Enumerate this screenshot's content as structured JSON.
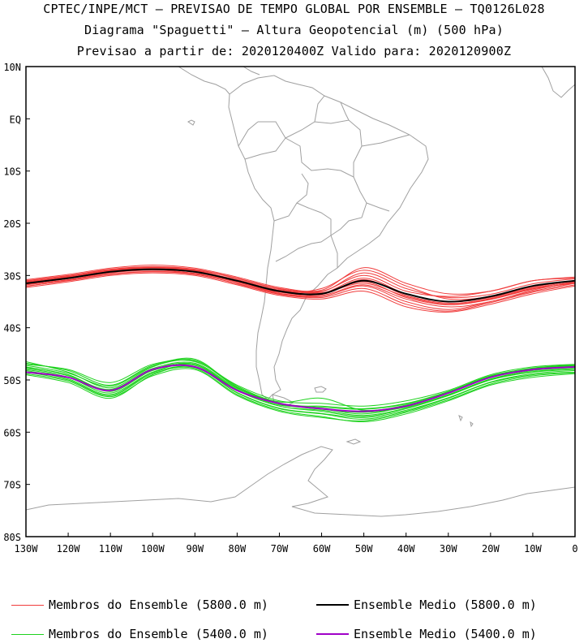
{
  "title": {
    "line1": "CPTEC/INPE/MCT – PREVISAO DE TEMPO GLOBAL POR ENSEMBLE – TQ0126L028",
    "line2": "Diagrama \"Spaguetti\" – Altura Geopotencial (m) (500 hPa)",
    "line3": "Previsao a partir de: 2020120400Z  Valido para: 2020120900Z"
  },
  "colors": {
    "member_5800": "#f03c3c",
    "mean_5800": "#000000",
    "member_5400": "#1ed21e",
    "mean_5400": "#a000c8",
    "coastline": "#a0a0a0"
  },
  "legend": [
    {
      "label": "Membros do Ensemble (5800.0 m)",
      "color": "#f03c3c",
      "thick": false
    },
    {
      "label": "Ensemble Medio (5800.0 m)",
      "color": "#000000",
      "thick": true
    },
    {
      "label": "Membros do Ensemble (5400.0 m)",
      "color": "#1ed21e",
      "thick": false
    },
    {
      "label": "Ensemble Medio (5400.0 m)",
      "color": "#a000c8",
      "thick": true
    }
  ],
  "chart_data": {
    "type": "line",
    "projection": "lat-lon map (South America)",
    "xlim": [
      -130,
      0
    ],
    "ylim": [
      -80,
      10
    ],
    "x_ticks": [
      {
        "v": -130,
        "label": "130W"
      },
      {
        "v": -120,
        "label": "120W"
      },
      {
        "v": -110,
        "label": "110W"
      },
      {
        "v": -100,
        "label": "100W"
      },
      {
        "v": -90,
        "label": "90W"
      },
      {
        "v": -80,
        "label": "80W"
      },
      {
        "v": -70,
        "label": "70W"
      },
      {
        "v": -60,
        "label": "60W"
      },
      {
        "v": -50,
        "label": "50W"
      },
      {
        "v": -40,
        "label": "40W"
      },
      {
        "v": -30,
        "label": "30W"
      },
      {
        "v": -20,
        "label": "20W"
      },
      {
        "v": -10,
        "label": "10W"
      },
      {
        "v": 0,
        "label": "0"
      }
    ],
    "y_ticks": [
      {
        "v": 10,
        "label": "10N"
      },
      {
        "v": 0,
        "label": "EQ"
      },
      {
        "v": -10,
        "label": "10S"
      },
      {
        "v": -20,
        "label": "20S"
      },
      {
        "v": -30,
        "label": "30S"
      },
      {
        "v": -40,
        "label": "40S"
      },
      {
        "v": -50,
        "label": "50S"
      },
      {
        "v": -60,
        "label": "60S"
      },
      {
        "v": -70,
        "label": "70S"
      },
      {
        "v": -80,
        "label": "80S"
      }
    ],
    "lon": [
      -130,
      -120,
      -110,
      -100,
      -90,
      -80,
      -70,
      -60,
      -50,
      -40,
      -30,
      -20,
      -10,
      0
    ],
    "series": [
      {
        "name": "Ensemble Medio (5800.0 m)",
        "group": "5800",
        "role": "mean",
        "lat": [
          -31.5,
          -30.5,
          -29.3,
          -28.8,
          -29.3,
          -31.0,
          -33.0,
          -33.5,
          -31.0,
          -33.5,
          -35.0,
          -34.0,
          -32.0,
          -31.0
        ]
      },
      {
        "name": "Ensemble Medio (5400.0 m)",
        "group": "5400",
        "role": "mean",
        "lat": [
          -48.5,
          -49.5,
          -52.0,
          -48.0,
          -47.5,
          -52.0,
          -54.5,
          -55.5,
          -56.0,
          -55.0,
          -52.5,
          -49.5,
          -48.0,
          -47.5
        ]
      }
    ],
    "members_5800": [
      [
        -31.0,
        -30.0,
        -28.8,
        -28.3,
        -28.8,
        -30.5,
        -32.5,
        -33.0,
        -30.0,
        -33.0,
        -34.0,
        -33.0,
        -31.0,
        -30.5
      ],
      [
        -32.0,
        -31.0,
        -29.8,
        -29.3,
        -29.8,
        -31.5,
        -33.5,
        -34.0,
        -32.0,
        -35.0,
        -36.5,
        -35.0,
        -33.0,
        -31.5
      ],
      [
        -31.5,
        -30.2,
        -29.0,
        -28.5,
        -29.0,
        -31.0,
        -33.2,
        -32.5,
        -29.0,
        -32.0,
        -34.5,
        -34.0,
        -32.0,
        -31.0
      ],
      [
        -32.3,
        -31.2,
        -30.0,
        -29.5,
        -30.0,
        -31.8,
        -33.8,
        -34.5,
        -33.0,
        -36.0,
        -37.0,
        -35.5,
        -33.5,
        -32.0
      ],
      [
        -31.2,
        -30.3,
        -29.2,
        -28.5,
        -29.2,
        -30.8,
        -32.8,
        -33.3,
        -31.5,
        -34.0,
        -35.5,
        -34.5,
        -32.5,
        -31.5
      ],
      [
        -30.8,
        -29.8,
        -28.6,
        -28.0,
        -28.6,
        -30.3,
        -32.3,
        -32.8,
        -28.5,
        -31.5,
        -33.5,
        -33.0,
        -31.0,
        -30.3
      ],
      [
        -31.8,
        -30.8,
        -29.5,
        -29.0,
        -29.6,
        -31.3,
        -33.4,
        -33.8,
        -31.8,
        -34.5,
        -36.0,
        -35.0,
        -32.8,
        -31.2
      ],
      [
        -31.4,
        -30.4,
        -29.1,
        -28.7,
        -29.1,
        -30.9,
        -32.9,
        -33.4,
        -30.5,
        -33.5,
        -35.0,
        -34.2,
        -32.2,
        -31.0
      ],
      [
        -32.1,
        -30.9,
        -29.7,
        -29.2,
        -29.7,
        -31.6,
        -33.6,
        -34.2,
        -32.5,
        -35.5,
        -36.8,
        -35.2,
        -33.2,
        -31.8
      ],
      [
        -31.1,
        -30.1,
        -28.9,
        -28.4,
        -28.9,
        -30.6,
        -32.6,
        -33.1,
        -29.5,
        -32.5,
        -34.2,
        -33.6,
        -31.6,
        -30.6
      ],
      [
        -31.7,
        -30.6,
        -29.4,
        -28.9,
        -29.4,
        -31.2,
        -33.2,
        -33.6,
        -31.2,
        -34.2,
        -35.6,
        -34.6,
        -32.6,
        -31.4
      ],
      [
        -31.3,
        -30.5,
        -29.4,
        -28.9,
        -29.2,
        -30.9,
        -33.0,
        -33.6,
        -30.8,
        -33.8,
        -35.3,
        -34.4,
        -32.4,
        -31.2
      ]
    ],
    "members_5400": [
      [
        -47.0,
        -48.0,
        -50.5,
        -47.0,
        -46.5,
        -51.0,
        -54.0,
        -54.5,
        -55.0,
        -54.0,
        -52.0,
        -49.0,
        -47.5,
        -47.0
      ],
      [
        -48.0,
        -49.5,
        -52.5,
        -48.5,
        -47.0,
        -52.0,
        -55.0,
        -56.0,
        -57.0,
        -55.5,
        -53.0,
        -50.0,
        -48.5,
        -48.0
      ],
      [
        -46.5,
        -48.5,
        -51.5,
        -47.5,
        -46.0,
        -51.5,
        -54.5,
        -55.5,
        -56.5,
        -55.0,
        -52.5,
        -49.5,
        -48.0,
        -47.5
      ],
      [
        -49.0,
        -50.5,
        -53.5,
        -49.0,
        -47.5,
        -52.5,
        -55.5,
        -56.5,
        -57.5,
        -56.0,
        -53.5,
        -50.5,
        -49.0,
        -48.5
      ],
      [
        -47.5,
        -49.0,
        -52.0,
        -48.0,
        -47.0,
        -51.8,
        -54.8,
        -55.0,
        -55.5,
        -54.5,
        -52.2,
        -49.2,
        -47.8,
        -47.2
      ],
      [
        -48.5,
        -50.0,
        -53.0,
        -48.8,
        -47.8,
        -52.8,
        -55.8,
        -57.0,
        -58.0,
        -56.5,
        -54.0,
        -51.0,
        -49.5,
        -48.8
      ],
      [
        -47.8,
        -49.2,
        -51.8,
        -47.8,
        -46.8,
        -51.6,
        -54.6,
        -55.6,
        -56.2,
        -55.2,
        -52.8,
        -49.8,
        -48.2,
        -47.6
      ],
      [
        -46.8,
        -48.2,
        -51.0,
        -47.2,
        -46.2,
        -51.2,
        -54.2,
        -53.5,
        -55.8,
        -54.8,
        -52.4,
        -49.4,
        -47.9,
        -47.3
      ],
      [
        -48.8,
        -50.2,
        -53.2,
        -49.2,
        -48.0,
        -53.0,
        -56.0,
        -57.2,
        -57.8,
        -56.2,
        -53.8,
        -50.8,
        -49.2,
        -48.6
      ],
      [
        -47.2,
        -48.7,
        -51.2,
        -47.4,
        -46.4,
        -51.4,
        -54.4,
        -55.2,
        -55.6,
        -54.6,
        -52.3,
        -49.3,
        -47.7,
        -47.1
      ],
      [
        -48.2,
        -49.8,
        -52.8,
        -48.6,
        -47.6,
        -52.4,
        -55.4,
        -56.4,
        -57.2,
        -55.8,
        -53.4,
        -50.4,
        -48.8,
        -48.2
      ],
      [
        -47.6,
        -49.0,
        -52.2,
        -48.2,
        -47.2,
        -52.0,
        -55.0,
        -55.8,
        -56.8,
        -55.4,
        -52.9,
        -49.9,
        -48.4,
        -47.8
      ]
    ]
  }
}
